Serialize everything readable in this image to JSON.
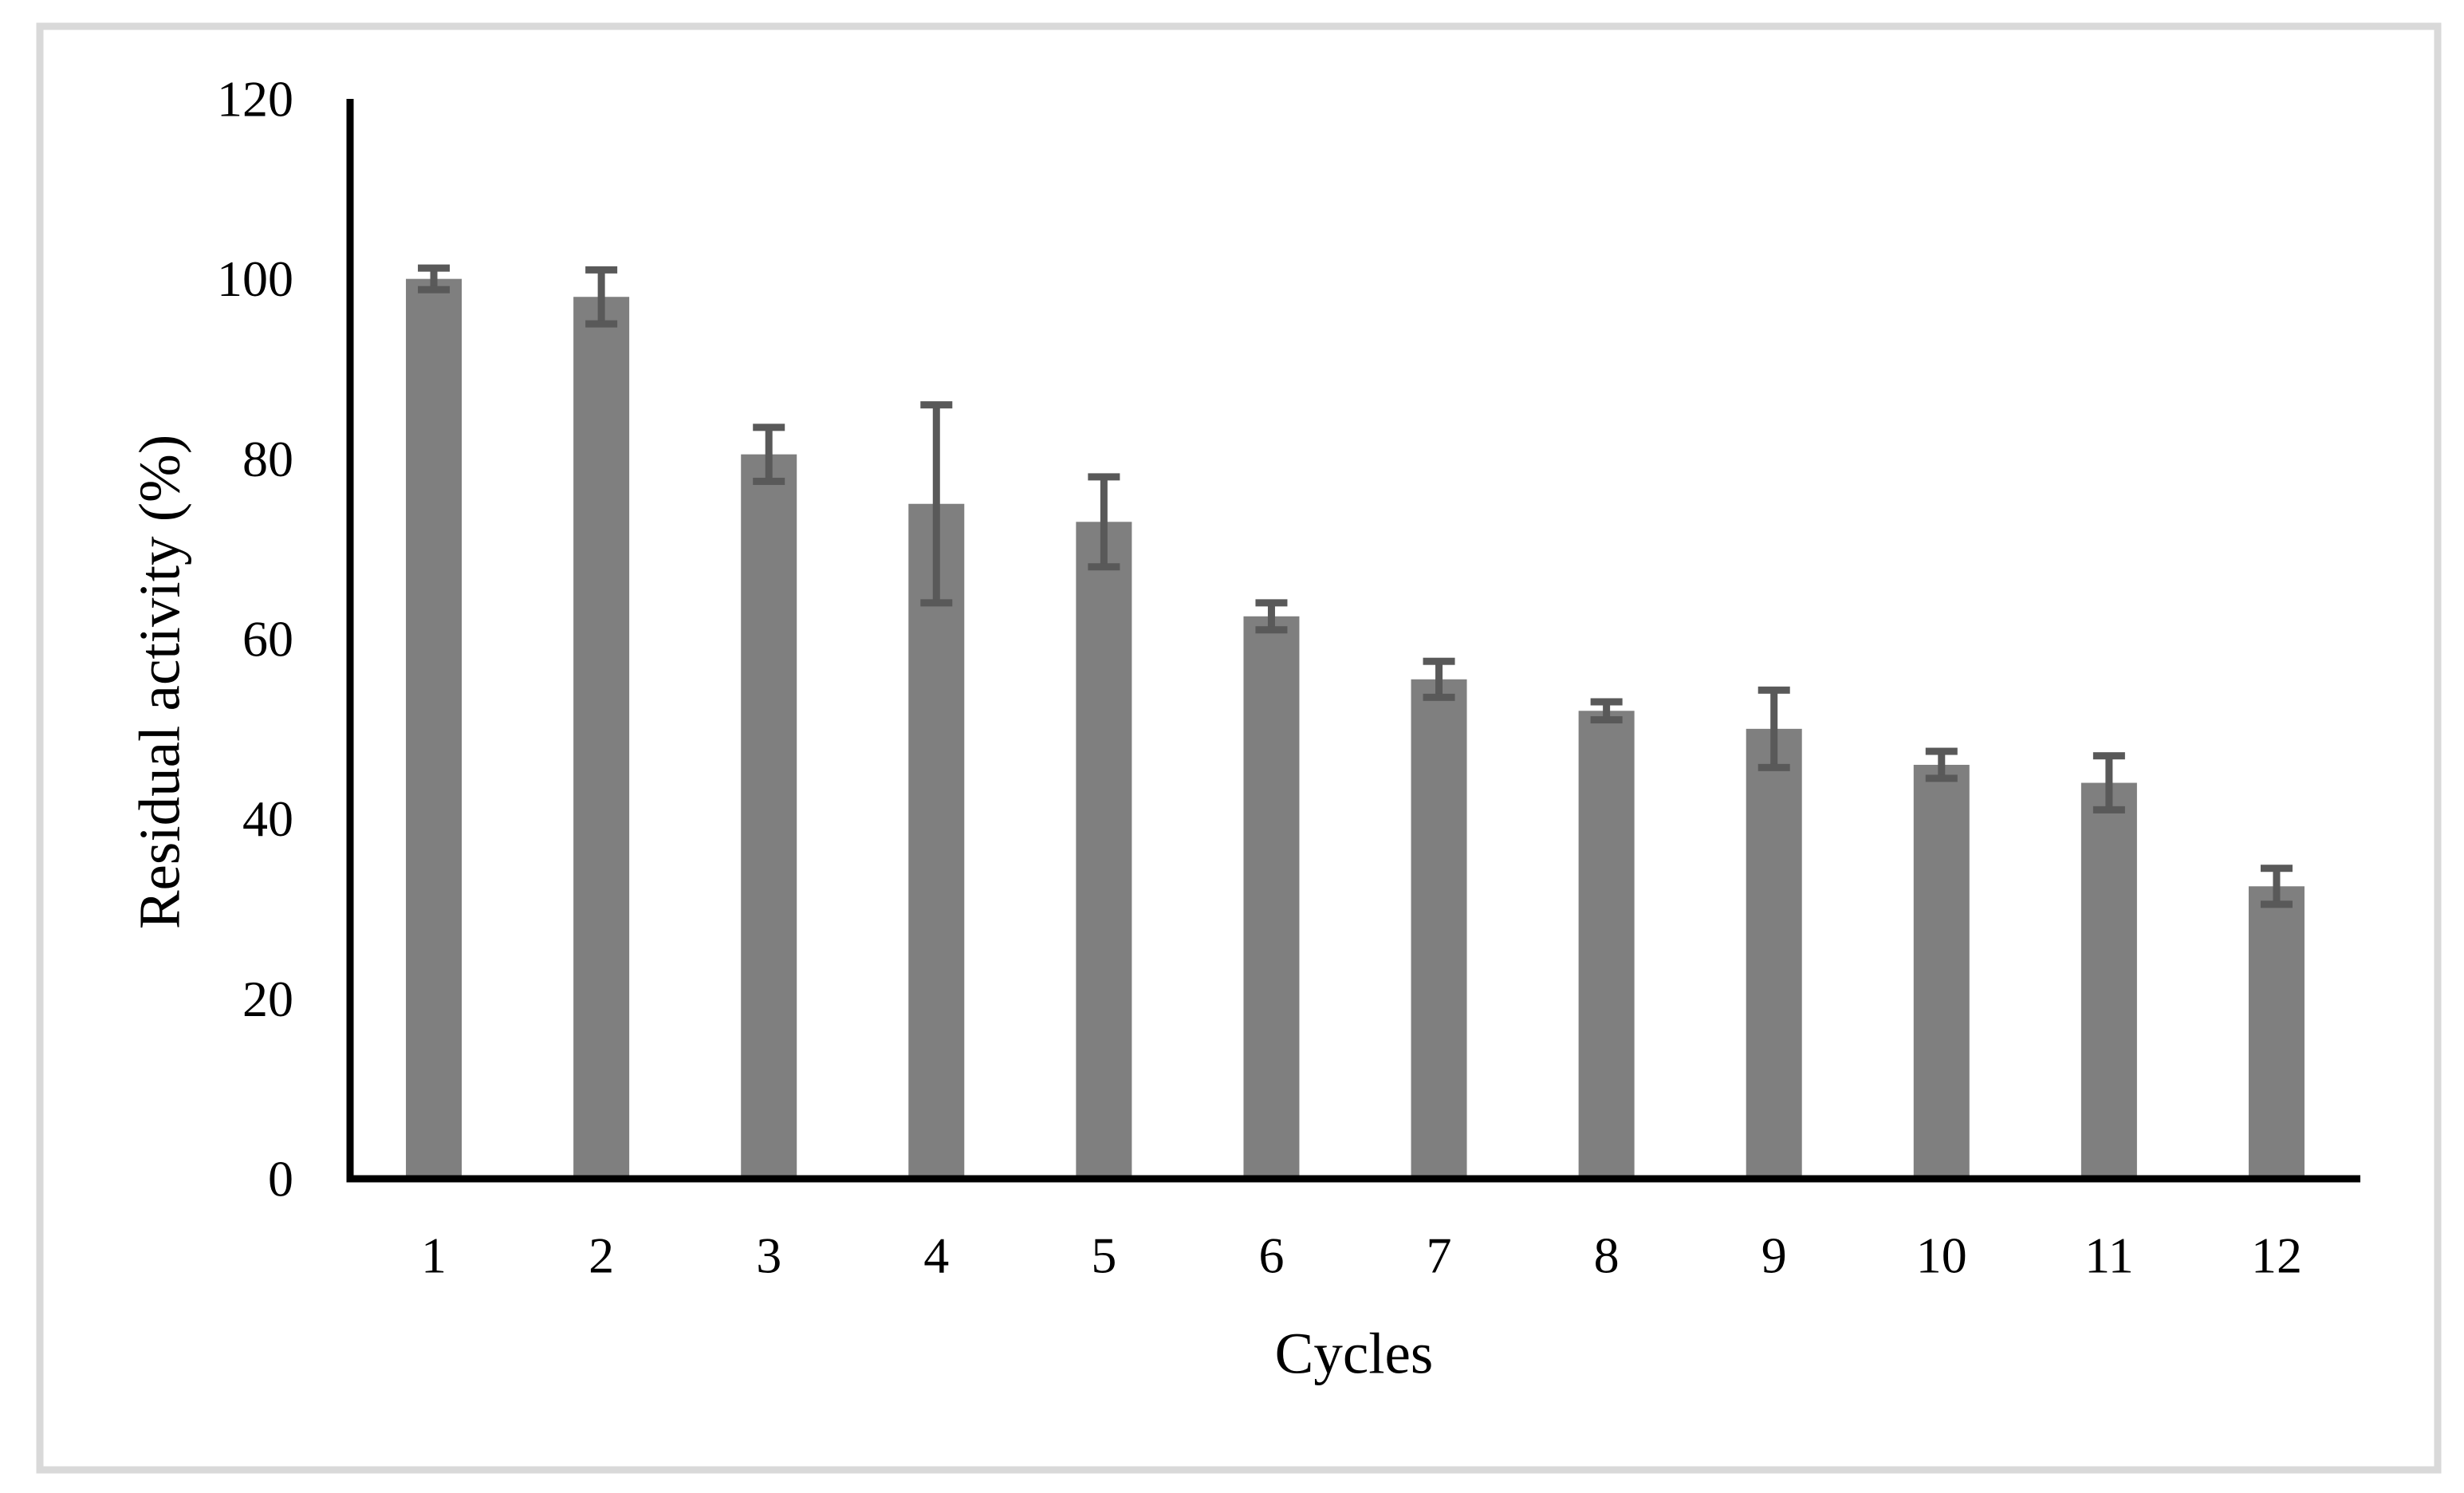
{
  "figure": {
    "background_color": "#ffffff",
    "border_color": "#d9d9d9"
  },
  "chart_data": {
    "type": "bar",
    "title": "",
    "xlabel": "Cycles",
    "ylabel": "Residual activity (%)",
    "categories": [
      "1",
      "2",
      "3",
      "4",
      "5",
      "6",
      "7",
      "8",
      "9",
      "10",
      "11",
      "12"
    ],
    "series": [
      {
        "name": "Residual activity",
        "values": [
          100,
          98,
          80.5,
          75,
          73,
          62.5,
          55.5,
          52,
          50,
          46,
          44,
          32.5
        ],
        "errors": [
          1.2,
          3,
          3,
          11,
          5,
          1.5,
          2,
          1,
          4.3,
          1.5,
          3,
          2
        ]
      }
    ],
    "y_ticks": [
      0,
      20,
      40,
      60,
      80,
      100,
      120
    ],
    "ylim": [
      0,
      120
    ],
    "grid": false,
    "legend_position": "none",
    "bar_color": "#7f7f7f",
    "error_bar_color": "#595959",
    "axis_color": "#000000"
  }
}
